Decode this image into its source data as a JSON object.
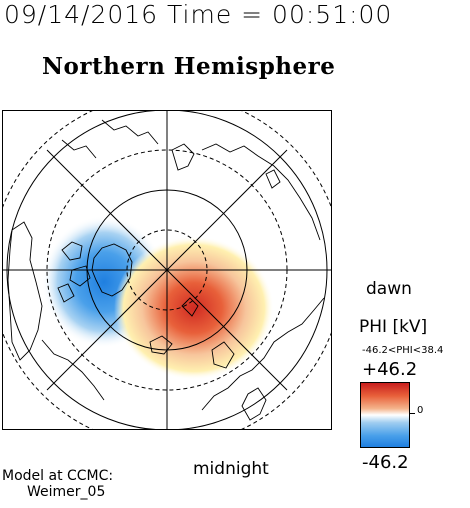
{
  "header": {
    "title": "09/14/2016 Time = 00:51:00",
    "subtitle": "Northern Hemisphere"
  },
  "labels": {
    "dawn": "dawn",
    "midnight": "midnight",
    "model_line1": "Model at CCMC:",
    "model_line2": "Weimer_05"
  },
  "colorbar": {
    "title": "PHI [kV]",
    "range_text": "-46.2<PHI<38.4",
    "max_label": "+46.2",
    "min_label": "-46.2",
    "zero_label": "0",
    "colors": {
      "positive": "#c81e1e",
      "negative": "#1f7fe0",
      "zero": "#ffffff"
    }
  }
}
